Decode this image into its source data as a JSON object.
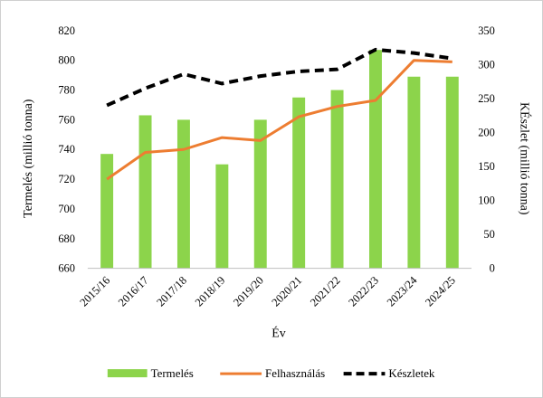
{
  "chart_data": {
    "type": "bar+line",
    "categories": [
      "2015/16",
      "2016/17",
      "2017/18",
      "2018/19",
      "2019/20",
      "2020/21",
      "2021/22",
      "2022/23",
      "2023/24",
      "2024/25"
    ],
    "series": [
      {
        "name": "Termelés",
        "kind": "bar",
        "axis": "left",
        "color": "#8CD44B",
        "values": [
          737,
          763,
          760,
          730,
          760,
          775,
          780,
          807,
          789,
          789
        ]
      },
      {
        "name": "Felhasználás",
        "kind": "line",
        "axis": "left",
        "color": "#ED7D31",
        "values": [
          720,
          738,
          740,
          748,
          746,
          762,
          769,
          773,
          800,
          799
        ]
      },
      {
        "name": "Készletek",
        "kind": "line-dashed",
        "axis": "right",
        "color": "#000000",
        "values": [
          240,
          265,
          286,
          272,
          283,
          290,
          293,
          322,
          317,
          309
        ]
      }
    ],
    "left_axis": {
      "label": "Termelés (millió tonna)",
      "min": 660,
      "max": 820,
      "step": 20,
      "ticks": [
        "660",
        "680",
        "700",
        "720",
        "740",
        "760",
        "780",
        "800",
        "820"
      ]
    },
    "right_axis": {
      "label": "KÉszlet (millió tonna)",
      "min": 0,
      "max": 350,
      "step": 50,
      "ticks": [
        "0",
        "50",
        "100",
        "150",
        "200",
        "250",
        "300",
        "350"
      ]
    },
    "xlabel": "Év",
    "legend": {
      "placement": "bottom",
      "items": [
        "Termelés",
        "Felhasználás",
        "Készletek"
      ]
    },
    "grid": false
  }
}
